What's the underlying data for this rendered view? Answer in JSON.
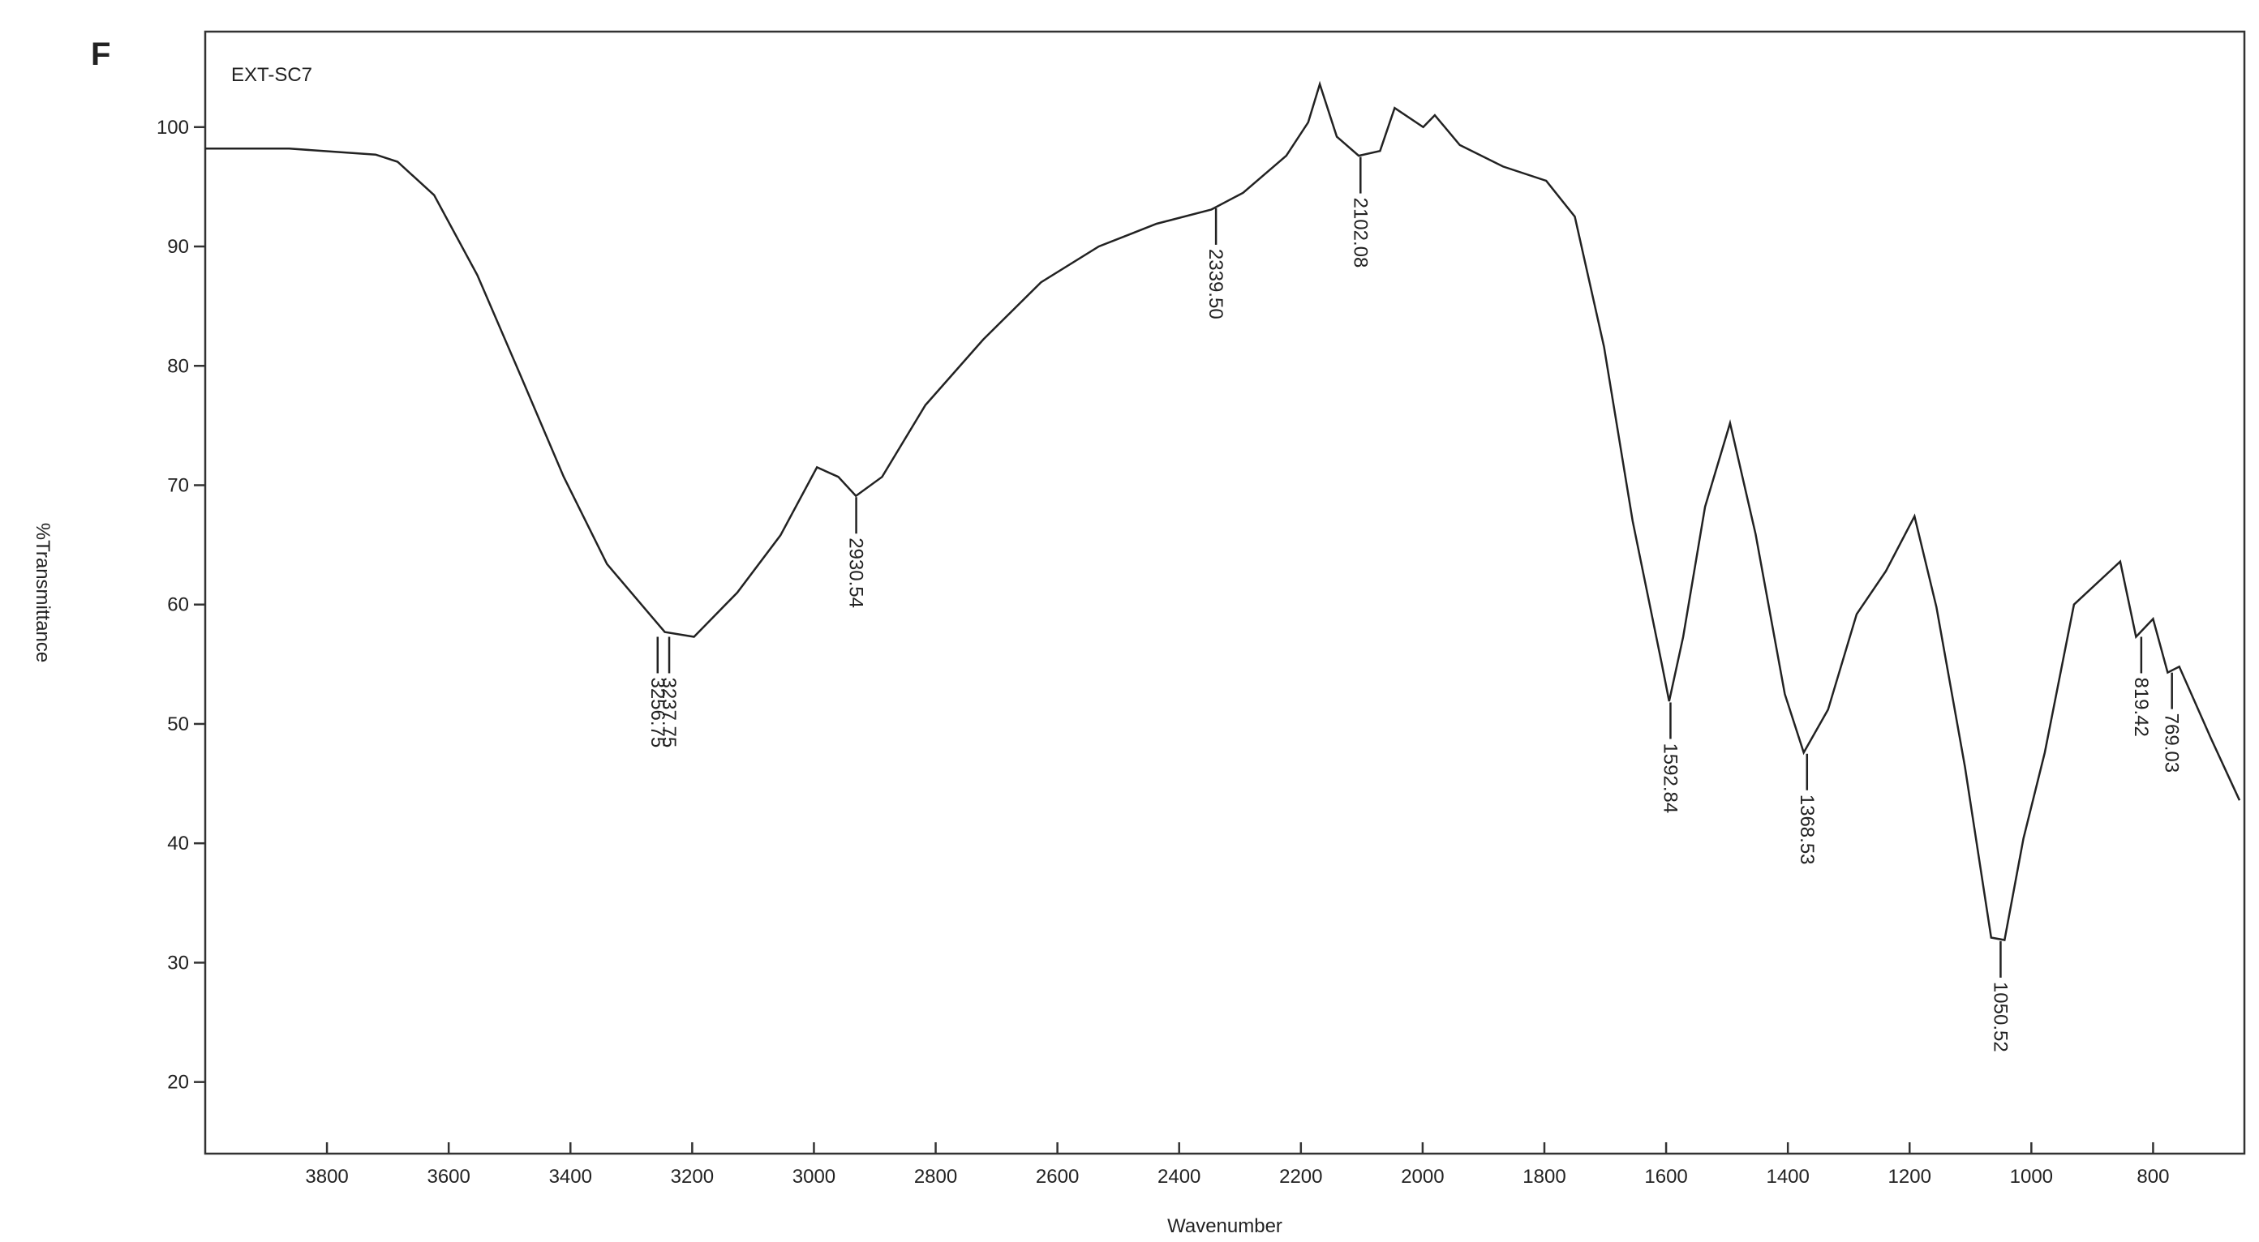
{
  "chart_data": {
    "type": "line",
    "panel_label": "F",
    "legend": "EXT-SC7",
    "xlabel": "Wavenumber",
    "ylabel": "%Transmittance",
    "xlim": [
      4000,
      650
    ],
    "ylim": [
      14,
      108
    ],
    "xticks": [
      3800,
      3600,
      3400,
      3200,
      3000,
      2800,
      2600,
      2400,
      2200,
      2000,
      1800,
      1600,
      1400,
      1200,
      1000,
      800
    ],
    "yticks": [
      20,
      30,
      40,
      50,
      60,
      70,
      80,
      90,
      100
    ],
    "color": "#222222",
    "x": [
      4000,
      3862,
      3720,
      3684,
      3624,
      3553,
      3482,
      3411,
      3340,
      3280,
      3245,
      3197,
      3126,
      3055,
      2995,
      2960,
      2931,
      2888,
      2817,
      2722,
      2627,
      2532,
      2437,
      2347,
      2295,
      2224,
      2188,
      2169,
      2141,
      2105,
      2070,
      2046,
      1999,
      1980,
      1939,
      1868,
      1797,
      1750,
      1702,
      1655,
      1607,
      1595,
      1572,
      1536,
      1495,
      1453,
      1405,
      1374,
      1334,
      1287,
      1239,
      1192,
      1156,
      1109,
      1066,
      1044,
      1013,
      978,
      930,
      871,
      854,
      828,
      800,
      776,
      757,
      705,
      658
    ],
    "values": [
      98.2,
      98.2,
      97.7,
      97.1,
      94.3,
      87.6,
      79.2,
      70.7,
      63.4,
      59.8,
      57.7,
      57.3,
      61,
      65.8,
      71.5,
      70.7,
      69.1,
      70.7,
      76.7,
      82.2,
      87,
      90,
      91.9,
      93.1,
      94.5,
      97.6,
      100.4,
      103.6,
      99.2,
      97.6,
      98,
      101.6,
      100,
      101,
      98.5,
      96.7,
      95.5,
      92.5,
      81.6,
      67,
      55,
      51.9,
      57.3,
      68.2,
      75.2,
      65.9,
      52.5,
      47.6,
      51.2,
      59.2,
      62.8,
      67.4,
      59.8,
      46.4,
      32.1,
      31.9,
      40.4,
      47.6,
      60,
      62.8,
      63.6,
      57.3,
      58.8,
      54.3,
      54.8,
      48.8,
      43.6
    ],
    "peaks": [
      {
        "label": "3256.75",
        "x": 3256.75,
        "y": 57.3
      },
      {
        "label": "3237.75",
        "x": 3237.75,
        "y": 57.3
      },
      {
        "label": "2930.54",
        "x": 2930.54,
        "y": 69
      },
      {
        "label": "2339.50",
        "x": 2339.5,
        "y": 93.2
      },
      {
        "label": "2102.08",
        "x": 2102.08,
        "y": 97.5
      },
      {
        "label": "1592.84",
        "x": 1592.84,
        "y": 51.8
      },
      {
        "label": "1368.53",
        "x": 1368.53,
        "y": 47.5
      },
      {
        "label": "1050.52",
        "x": 1050.52,
        "y": 31.8
      },
      {
        "label": "819.42",
        "x": 819.42,
        "y": 57.3
      },
      {
        "label": "769.03",
        "x": 769.03,
        "y": 54.3
      }
    ]
  }
}
